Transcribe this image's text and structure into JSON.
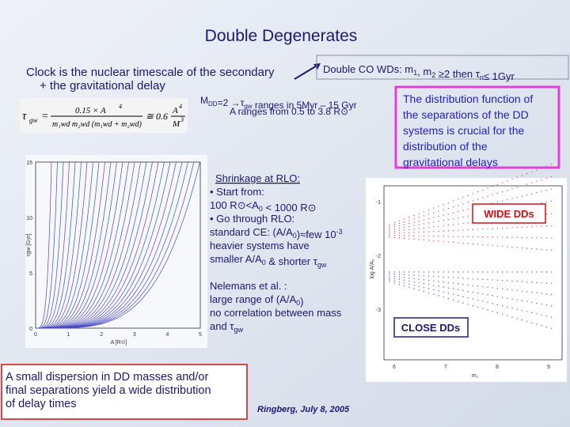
{
  "title": "Double Degenerates",
  "intro": [
    "Clock is the nuclear timescale of the secondary",
    "+  the gravitational delay"
  ],
  "co_box": [
    "Double CO WDs:  m",
    {
      "t": "1",
      "s": "sub"
    },
    ",  m",
    {
      "t": "2",
      "s": "sub"
    },
    "  ≥2  then τ",
    {
      "t": "n",
      "s": "sub"
    },
    "≤  1Gyr"
  ],
  "formula": {
    "lhs": "τ",
    "lhs_sub": "gw",
    "eq": "=",
    "num": "0.15 × A",
    "num_sup": "4",
    "den": "m₁wd m₂wd (m₁wd + m₂wd)",
    "approx": "≅ 0.6",
    "rnum": "A",
    "rnum_sup": "4",
    "rden": "M",
    "rden_sup": "3"
  },
  "tau_range": [
    "M",
    {
      "t": "DD",
      "s": "sub"
    },
    "=2 →τ",
    {
      "t": "gw",
      "s": "sub"
    },
    " ranges in 5Myr – 15 Gyr"
  ],
  "a_range": "A  ranges from 0.5 to 3.8 R⊙",
  "distribution_note": [
    "The distribution function of",
    "the separations of the DD",
    "systems is crucial for the",
    "distribution of the",
    "gravitational delays"
  ],
  "shrinkage": {
    "heading": "Shrinkage at RLO:",
    "lines": [
      [
        "•  Start from:"
      ],
      [
        "100 R⊙<A",
        {
          "t": "0",
          "s": "sub"
        },
        " < 1000 R⊙"
      ],
      [
        "•  Go through RLO:"
      ],
      [
        "standard CE: (A/A",
        {
          "t": "0",
          "s": "sub"
        },
        ")≈few 10",
        {
          "t": "-3",
          "s": "sup"
        }
      ],
      [
        "  heavier systems have"
      ],
      [
        "smaller A/A",
        {
          "t": "0",
          "s": "sub"
        },
        " & shorter τ",
        {
          "t": "gw",
          "s": "sub"
        }
      ]
    ]
  },
  "nelemans": [
    [
      "Nelemans et al. :"
    ],
    [
      "large range of (A/A",
      {
        "t": "0",
        "s": "sub"
      },
      ")"
    ],
    [
      "no correlation between mass"
    ],
    [
      "and τ",
      {
        "t": "gw",
        "s": "sub"
      }
    ]
  ],
  "conclusion": [
    "A small dispersion in DD masses and/or",
    "final separations yield a wide distribution",
    "of delay times"
  ],
  "footer": "Ringberg, July 8, 2005",
  "left_plot": {
    "y_label": "τgw [Gyr]",
    "x_label": "A [R⊙]",
    "yticks": [
      "0",
      "5",
      "10",
      "15"
    ],
    "xticks": [
      "0",
      "1",
      "2",
      "3",
      "4",
      "5"
    ]
  },
  "right_plot": {
    "y_label": "log A/A₀",
    "x_label": "m₂",
    "yticks": [
      "-1",
      "-2",
      "-3"
    ],
    "xticks": [
      "6",
      "7",
      "8",
      "9"
    ],
    "wide_label": "WIDE DDs",
    "close_label": "CLOSE DDs"
  }
}
